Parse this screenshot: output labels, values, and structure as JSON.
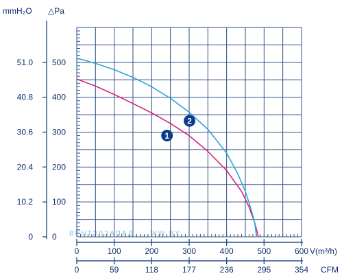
{
  "chart_data": {
    "type": "line",
    "left_unit_outer": "mmH₂O",
    "left_unit_inner": "△Pa",
    "x_unit": "V(m³/h)",
    "x2_unit": "CFM",
    "xlim": [
      0,
      600
    ],
    "ylim": [
      0,
      600
    ],
    "x_ticks": [
      "0",
      "100",
      "200",
      "300",
      "400",
      "500",
      "600"
    ],
    "x2_ticks": [
      "0",
      "59",
      "118",
      "177",
      "236",
      "295",
      "354"
    ],
    "y_ticks_pa": [
      "0",
      "100",
      "200",
      "300",
      "400",
      "500"
    ],
    "y_ticks_mm": [
      "0",
      "10.2",
      "20.4",
      "30.6",
      "40.8",
      "51.0"
    ],
    "grid": true,
    "watermark": "ВЕНТЗЛЗАПАД.....WW.BY",
    "series": [
      {
        "name": "1",
        "color": "#d8247c",
        "x": [
          0,
          50,
          100,
          150,
          200,
          250,
          300,
          350,
          400,
          440,
          460,
          475,
          485
        ],
        "y": [
          452,
          432,
          408,
          382,
          355,
          325,
          290,
          245,
          190,
          130,
          85,
          40,
          0
        ]
      },
      {
        "name": "2",
        "color": "#29a6d6",
        "x": [
          0,
          50,
          100,
          150,
          200,
          250,
          300,
          350,
          400,
          430,
          450,
          465,
          475,
          480
        ],
        "y": [
          512,
          497,
          479,
          457,
          430,
          397,
          357,
          308,
          240,
          180,
          130,
          80,
          40,
          0
        ]
      }
    ],
    "marker_color": "#0c3e8c"
  }
}
